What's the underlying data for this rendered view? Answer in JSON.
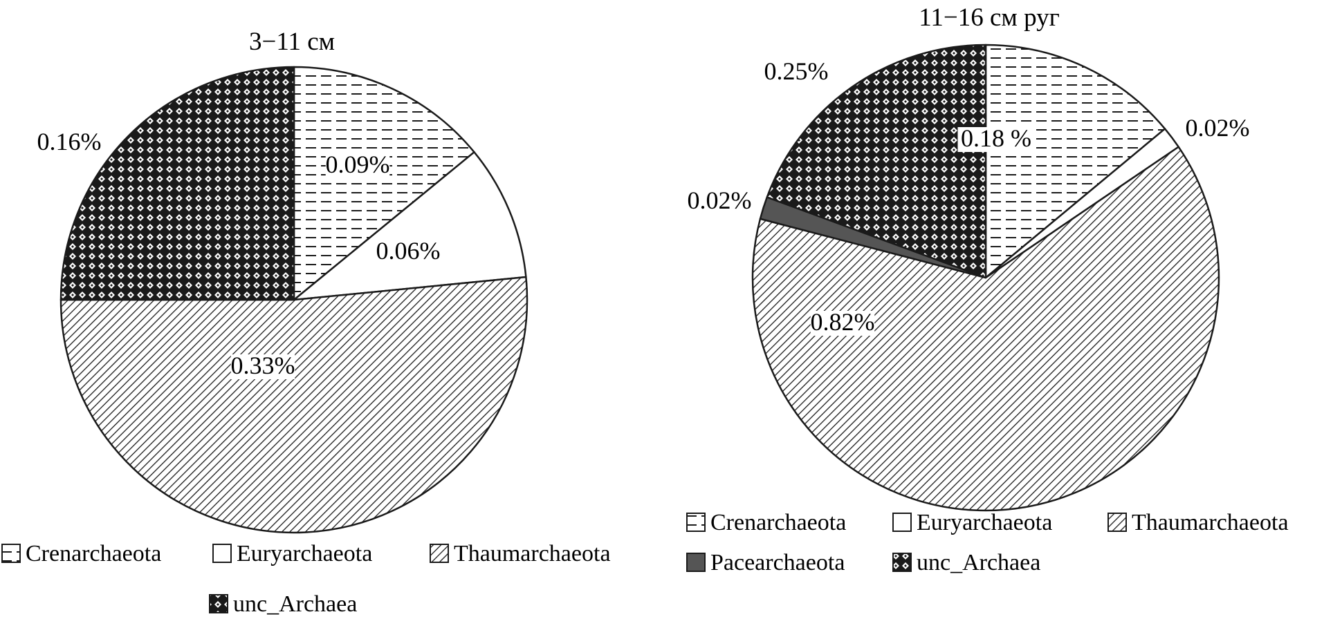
{
  "chart_data": [
    {
      "type": "pie",
      "title": "3−11 см",
      "legend": [
        "Crenarchaeota",
        "Euryarchaeota",
        "Thaumarchaeota",
        "unc_Archaea"
      ],
      "series": [
        {
          "name": "Crenarchaeota",
          "value": 0.09,
          "label": "0.09%",
          "pattern": "dashes"
        },
        {
          "name": "Euryarchaeota",
          "value": 0.06,
          "label": "0.06%",
          "pattern": "empty"
        },
        {
          "name": "Thaumarchaeota",
          "value": 0.33,
          "label": "0.33%",
          "pattern": "diagonal"
        },
        {
          "name": "unc_Archaea",
          "value": 0.16,
          "label": "0.16%",
          "pattern": "checker"
        }
      ],
      "legend_placement": "bottom",
      "start": "12 o'clock",
      "direction": "clockwise"
    },
    {
      "type": "pie",
      "title": "11−16 см руг",
      "legend": [
        "Crenarchaeota",
        "Euryarchaeota",
        "Thaumarchaeota",
        "Pacearchaeota",
        "unc_Archaea"
      ],
      "series": [
        {
          "name": "Crenarchaeota",
          "value": 0.18,
          "label": "0.18 %",
          "pattern": "dashes"
        },
        {
          "name": "Euryarchaeota",
          "value": 0.02,
          "label": "0.02%",
          "pattern": "empty"
        },
        {
          "name": "Thaumarchaeota",
          "value": 0.82,
          "label": "0.82%",
          "pattern": "diagonal"
        },
        {
          "name": "Pacearchaeota",
          "value": 0.02,
          "label": "0.02%",
          "pattern": "solid"
        },
        {
          "name": "unc_Archaea",
          "value": 0.25,
          "label": "0.25%",
          "pattern": "checker"
        }
      ],
      "legend_placement": "bottom",
      "start": "12 o'clock",
      "direction": "clockwise"
    }
  ],
  "colors": {
    "stroke": "#1a1a1a",
    "solid": "#555555",
    "background": "#ffffff"
  }
}
